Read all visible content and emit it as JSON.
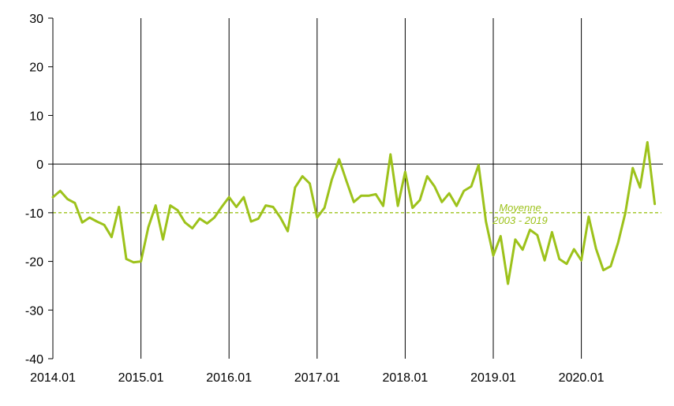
{
  "chart_data": {
    "type": "line",
    "title": "",
    "xlabel": "",
    "ylabel": "",
    "ylim": [
      -40,
      30
    ],
    "yticks": [
      30,
      20,
      10,
      0,
      -10,
      -20,
      -30,
      -40
    ],
    "x_tick_labels": [
      "2014.01",
      "2015.01",
      "2016.01",
      "2017.01",
      "2018.01",
      "2019.01",
      "2020.01"
    ],
    "x_start": "2014.01",
    "x_step": "month",
    "vertical_gridlines": true,
    "horizontal_gridlines": false,
    "zero_line": true,
    "series": [
      {
        "color": "#9dc21b",
        "values": [
          -6.8,
          -5.5,
          -7.2,
          -8,
          -12,
          -11,
          -11.8,
          -12.5,
          -15,
          -8.8,
          -19.5,
          -20.2,
          -20,
          -13,
          -8.5,
          -15.5,
          -8.5,
          -9.5,
          -12,
          -13.2,
          -11.2,
          -12.2,
          -11,
          -8.8,
          -6.8,
          -8.8,
          -6.8,
          -11.8,
          -11.2,
          -8.5,
          -8.8,
          -11,
          -13.8,
          -4.8,
          -2.5,
          -4,
          -11,
          -9,
          -3.2,
          1,
          -3.5,
          -7.8,
          -6.5,
          -6.5,
          -6.2,
          -8.6,
          2,
          -8.6,
          -1.6,
          -9,
          -7.4,
          -2.5,
          -4.6,
          -7.8,
          -6,
          -8.6,
          -5.5,
          -4.6,
          -0.2,
          -11.8,
          -18.8,
          -14.8,
          -24.6,
          -15.5,
          -17.6,
          -13.5,
          -14.6,
          -19.8,
          -14,
          -19.5,
          -20.5,
          -17.5,
          -19.8,
          -10.8,
          -17.4,
          -21.8,
          -21,
          -16.2,
          -10,
          -0.8,
          -4.8,
          4.5,
          -8.2
        ]
      }
    ],
    "reference_line": {
      "value": -10,
      "color": "#9dc21b",
      "style": "dashed",
      "label_line1": "Moyenne",
      "label_line2": "2003 - 2019"
    },
    "axis_color": "#000000"
  }
}
